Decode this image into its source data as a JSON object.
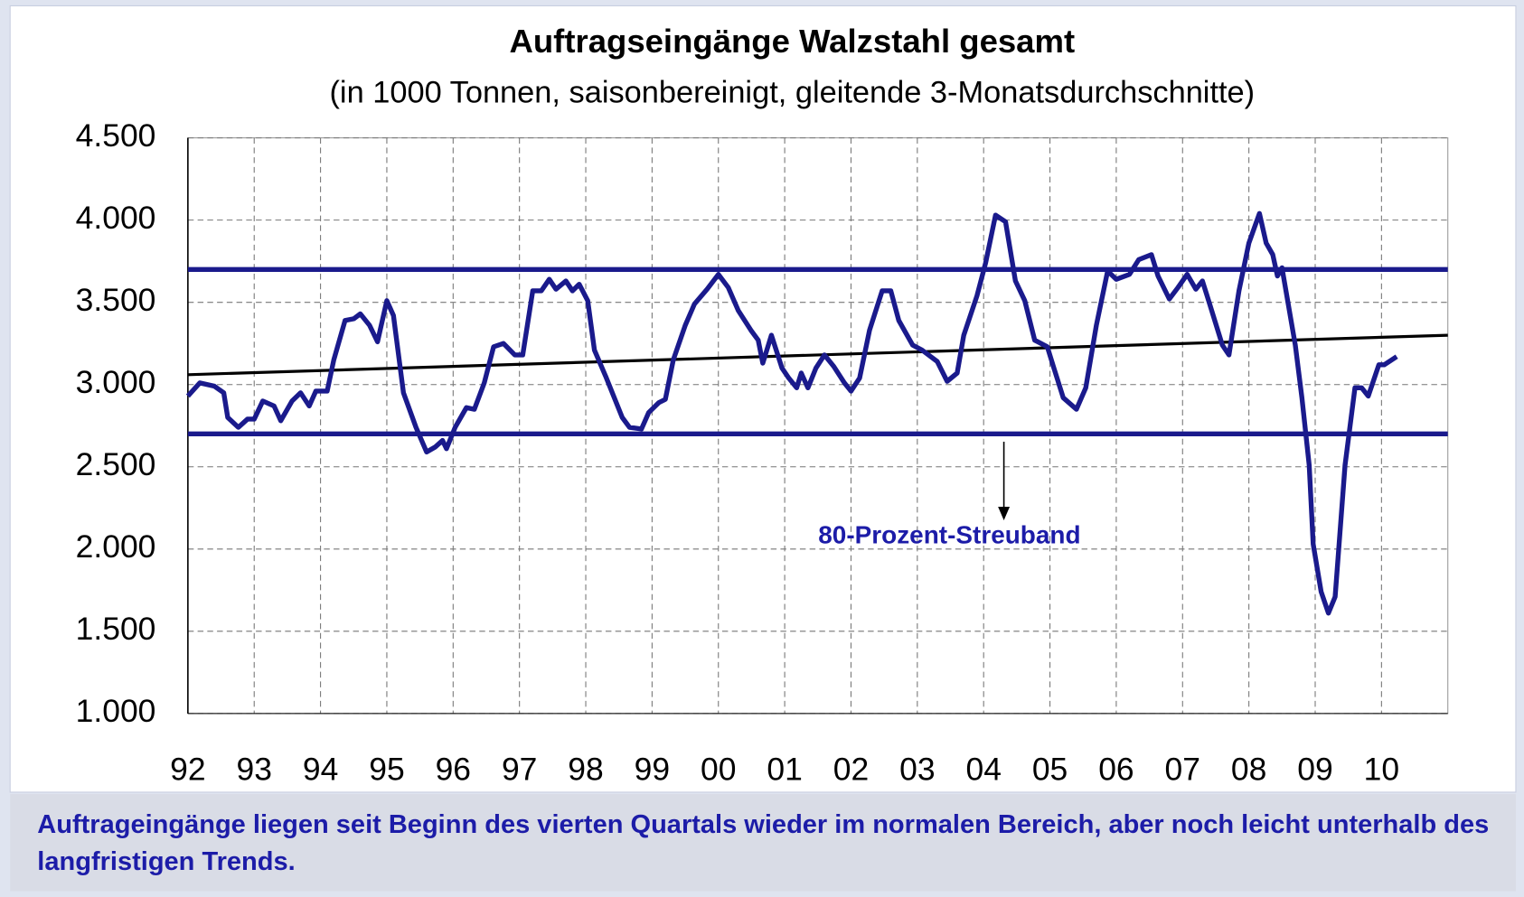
{
  "chart_data": {
    "type": "line",
    "title": "Auftragseingänge Walzstahl gesamt",
    "subtitle": "(in 1000 Tonnen, saisonbereinigt, gleitende 3-Monatsdurchschnitte)",
    "caption": "Auftrageingänge liegen seit Beginn des vierten Quartals wieder im normalen Bereich, aber noch leicht unterhalb des langfristigen Trends.",
    "annotation": "80-Prozent-Streuband",
    "xlim": [
      1992,
      2011
    ],
    "ylim": [
      1000,
      4500
    ],
    "xticks": [
      {
        "value": 1992,
        "label": "92"
      },
      {
        "value": 1993,
        "label": "93"
      },
      {
        "value": 1994,
        "label": "94"
      },
      {
        "value": 1995,
        "label": "95"
      },
      {
        "value": 1996,
        "label": "96"
      },
      {
        "value": 1997,
        "label": "97"
      },
      {
        "value": 1998,
        "label": "98"
      },
      {
        "value": 1999,
        "label": "99"
      },
      {
        "value": 2000,
        "label": "00"
      },
      {
        "value": 2001,
        "label": "01"
      },
      {
        "value": 2002,
        "label": "02"
      },
      {
        "value": 2003,
        "label": "03"
      },
      {
        "value": 2004,
        "label": "04"
      },
      {
        "value": 2005,
        "label": "05"
      },
      {
        "value": 2006,
        "label": "06"
      },
      {
        "value": 2007,
        "label": "07"
      },
      {
        "value": 2008,
        "label": "08"
      },
      {
        "value": 2009,
        "label": "09"
      },
      {
        "value": 2010,
        "label": "10"
      }
    ],
    "yticks": [
      {
        "value": 1000,
        "label": "1.000"
      },
      {
        "value": 1500,
        "label": "1.500"
      },
      {
        "value": 2000,
        "label": "2.000"
      },
      {
        "value": 2500,
        "label": "2.500"
      },
      {
        "value": 3000,
        "label": "3.000"
      },
      {
        "value": 3500,
        "label": "3.500"
      },
      {
        "value": 4000,
        "label": "4.000"
      },
      {
        "value": 4500,
        "label": "4.500"
      }
    ],
    "grid": true,
    "band": {
      "values": [
        2700,
        3700
      ],
      "color": "#1a1a8c"
    },
    "trend": {
      "x": [
        1992,
        2011
      ],
      "values": [
        3060,
        3300
      ],
      "color": "#000000"
    },
    "x": [
      1992.0,
      1992.18,
      1992.4,
      1992.54,
      1992.6,
      1992.76,
      1992.9,
      1993.0,
      1993.13,
      1993.3,
      1993.4,
      1993.57,
      1993.7,
      1993.83,
      1993.93,
      1994.1,
      1994.2,
      1994.37,
      1994.5,
      1994.6,
      1994.74,
      1994.86,
      1995.0,
      1995.1,
      1995.25,
      1995.44,
      1995.6,
      1995.73,
      1995.84,
      1995.9,
      1996.03,
      1996.2,
      1996.32,
      1996.47,
      1996.61,
      1996.76,
      1996.93,
      1997.05,
      1997.2,
      1997.33,
      1997.45,
      1997.55,
      1997.7,
      1997.8,
      1997.9,
      1998.03,
      1998.13,
      1998.3,
      1998.55,
      1998.66,
      1998.84,
      1998.95,
      1999.1,
      1999.2,
      1999.32,
      1999.5,
      1999.64,
      1999.83,
      2000.0,
      2000.15,
      2000.3,
      2000.49,
      2000.6,
      2000.67,
      2000.8,
      2000.96,
      2001.06,
      2001.18,
      2001.25,
      2001.35,
      2001.47,
      2001.6,
      2001.74,
      2001.9,
      2002.0,
      2002.13,
      2002.28,
      2002.47,
      2002.6,
      2002.72,
      2002.93,
      2003.07,
      2003.3,
      2003.45,
      2003.6,
      2003.7,
      2003.9,
      2004.03,
      2004.18,
      2004.33,
      2004.48,
      2004.62,
      2004.77,
      2004.96,
      2005.06,
      2005.2,
      2005.4,
      2005.54,
      2005.7,
      2005.87,
      2006.0,
      2006.2,
      2006.34,
      2006.53,
      2006.63,
      2006.8,
      2006.93,
      2007.07,
      2007.2,
      2007.3,
      2007.4,
      2007.6,
      2007.7,
      2007.85,
      2008.0,
      2008.16,
      2008.26,
      2008.36,
      2008.43,
      2008.5,
      2008.7,
      2008.8,
      2008.91,
      2008.97,
      2009.09,
      2009.2,
      2009.3,
      2009.45,
      2009.6,
      2009.7,
      2009.8,
      2009.96,
      2010.04,
      2010.23
    ],
    "series": [
      {
        "color": "#1a1a8c",
        "values": [
          2930,
          3010,
          2990,
          2950,
          2800,
          2740,
          2790,
          2790,
          2900,
          2870,
          2780,
          2900,
          2950,
          2870,
          2960,
          2960,
          3150,
          3390,
          3400,
          3430,
          3360,
          3260,
          3510,
          3420,
          2950,
          2740,
          2590,
          2620,
          2660,
          2610,
          2740,
          2860,
          2850,
          3010,
          3230,
          3250,
          3180,
          3180,
          3570,
          3570,
          3640,
          3580,
          3630,
          3570,
          3610,
          3510,
          3210,
          3050,
          2800,
          2740,
          2730,
          2830,
          2890,
          2910,
          3150,
          3360,
          3490,
          3580,
          3670,
          3590,
          3450,
          3330,
          3270,
          3130,
          3300,
          3100,
          3040,
          2980,
          3070,
          2980,
          3100,
          3180,
          3110,
          3010,
          2960,
          3040,
          3330,
          3570,
          3570,
          3390,
          3240,
          3210,
          3140,
          3020,
          3070,
          3300,
          3540,
          3740,
          4030,
          3990,
          3630,
          3510,
          3270,
          3230,
          3100,
          2920,
          2850,
          2980,
          3360,
          3690,
          3640,
          3670,
          3760,
          3790,
          3660,
          3520,
          3590,
          3670,
          3580,
          3630,
          3500,
          3240,
          3180,
          3570,
          3860,
          4040,
          3860,
          3790,
          3660,
          3710,
          3240,
          2920,
          2510,
          2030,
          1740,
          1610,
          1710,
          2510,
          2980,
          2980,
          2930,
          3120,
          3120,
          3170
        ]
      }
    ]
  }
}
